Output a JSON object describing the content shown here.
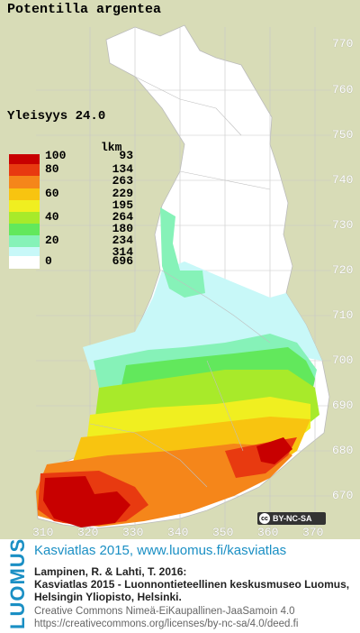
{
  "species_title": "Potentilla argentea",
  "frequency_label": "Yleisyys  24.0",
  "legend": {
    "header": "lkm",
    "rows": [
      {
        "value": "100",
        "count": "93",
        "color": "#c80000"
      },
      {
        "value": "80",
        "count": "134",
        "color": "#e83a10"
      },
      {
        "value": "",
        "count": "263",
        "color": "#f5861a"
      },
      {
        "value": "60",
        "count": "229",
        "color": "#f8c410"
      },
      {
        "value": "",
        "count": "195",
        "color": "#f0ef20"
      },
      {
        "value": "40",
        "count": "264",
        "color": "#a8ea2a"
      },
      {
        "value": "",
        "count": "180",
        "color": "#62e85c"
      },
      {
        "value": "20",
        "count": "234",
        "color": "#86f2b8"
      },
      {
        "value": "",
        "count": "314",
        "color": "#c8f8f8"
      },
      {
        "value": "0",
        "count": "696",
        "color": "#ffffff"
      }
    ]
  },
  "axis_right": [
    "770",
    "760",
    "750",
    "740",
    "730",
    "720",
    "710",
    "700",
    "690",
    "680",
    "670"
  ],
  "axis_bottom": [
    "310",
    "320",
    "330",
    "340",
    "350",
    "360",
    "370"
  ],
  "license_badge": "BY-NC-SA",
  "footer": {
    "logo": "LUOMUS",
    "atlas_title": "Kasviatlas 2015, www.luomus.fi/kasviatlas",
    "citation_1": "Lampinen, R. & Lahti, T. 2016:",
    "citation_2": "Kasviatlas 2015 - Luonnontieteellinen keskusmuseo Luomus,",
    "citation_3": "Helsingin Yliopisto, Helsinki.",
    "license_1": "Creative Commons Nimeä-EiKaupallinen-JaaSamoin 4.0",
    "license_2": "https://creativecommons.org/licenses/by-nc-sa/4.0/deed.fi"
  }
}
